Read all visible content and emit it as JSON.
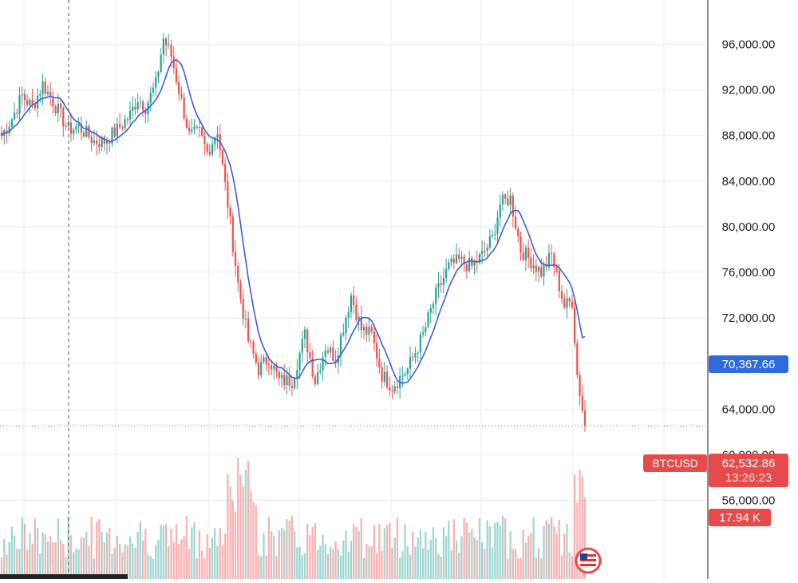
{
  "chart_data": {
    "type": "candlestick",
    "symbol": "BTCUSD",
    "last_price": "62,532.86",
    "countdown": "13:26:23",
    "ma_value": "70,367.66",
    "volume_value": "17.94 K",
    "ylim": [
      54000,
      99000
    ],
    "y_ticks": [
      "96,000.00",
      "92,000.00",
      "88,000.00",
      "84,000.00",
      "80,000.00",
      "76,000.00",
      "72,000.00",
      "68,000.00",
      "64,000.00",
      "60,000.00",
      "56,000.00"
    ],
    "y_tick_values": [
      96000,
      92000,
      88000,
      84000,
      80000,
      76000,
      72000,
      68000,
      64000,
      60000,
      56000
    ],
    "grid": true,
    "last_price_value": 62533,
    "ma_last_value": 70368,
    "anchors": [
      [
        0,
        88000
      ],
      [
        4,
        89500
      ],
      [
        8,
        91500
      ],
      [
        12,
        90500
      ],
      [
        16,
        92500
      ],
      [
        20,
        91000
      ],
      [
        26,
        88500
      ],
      [
        30,
        88800
      ],
      [
        36,
        87500
      ],
      [
        40,
        87500
      ],
      [
        45,
        88500
      ],
      [
        50,
        89800
      ],
      [
        53,
        91300
      ],
      [
        56,
        90500
      ],
      [
        60,
        92500
      ],
      [
        63,
        96500
      ],
      [
        66,
        95000
      ],
      [
        70,
        91000
      ],
      [
        73,
        88000
      ],
      [
        77,
        88200
      ],
      [
        80,
        86500
      ],
      [
        84,
        88500
      ],
      [
        88,
        82000
      ],
      [
        92,
        75000
      ],
      [
        96,
        70000
      ],
      [
        100,
        67500
      ],
      [
        104,
        68500
      ],
      [
        108,
        66500
      ],
      [
        113,
        66500
      ],
      [
        118,
        70500
      ],
      [
        122,
        66500
      ],
      [
        126,
        69500
      ],
      [
        130,
        68500
      ],
      [
        136,
        74000
      ],
      [
        140,
        71000
      ],
      [
        144,
        70500
      ],
      [
        148,
        67000
      ],
      [
        152,
        66000
      ],
      [
        158,
        67500
      ],
      [
        164,
        70500
      ],
      [
        169,
        74000
      ],
      [
        174,
        76500
      ],
      [
        178,
        77000
      ],
      [
        183,
        76500
      ],
      [
        187,
        77500
      ],
      [
        191,
        79000
      ],
      [
        194,
        82000
      ],
      [
        198,
        82500
      ],
      [
        202,
        78000
      ],
      [
        206,
        77000
      ],
      [
        210,
        76000
      ],
      [
        214,
        77500
      ],
      [
        219,
        73000
      ],
      [
        222,
        73500
      ],
      [
        224,
        67000
      ],
      [
        226,
        64000
      ],
      [
        227,
        62533
      ]
    ]
  }
}
